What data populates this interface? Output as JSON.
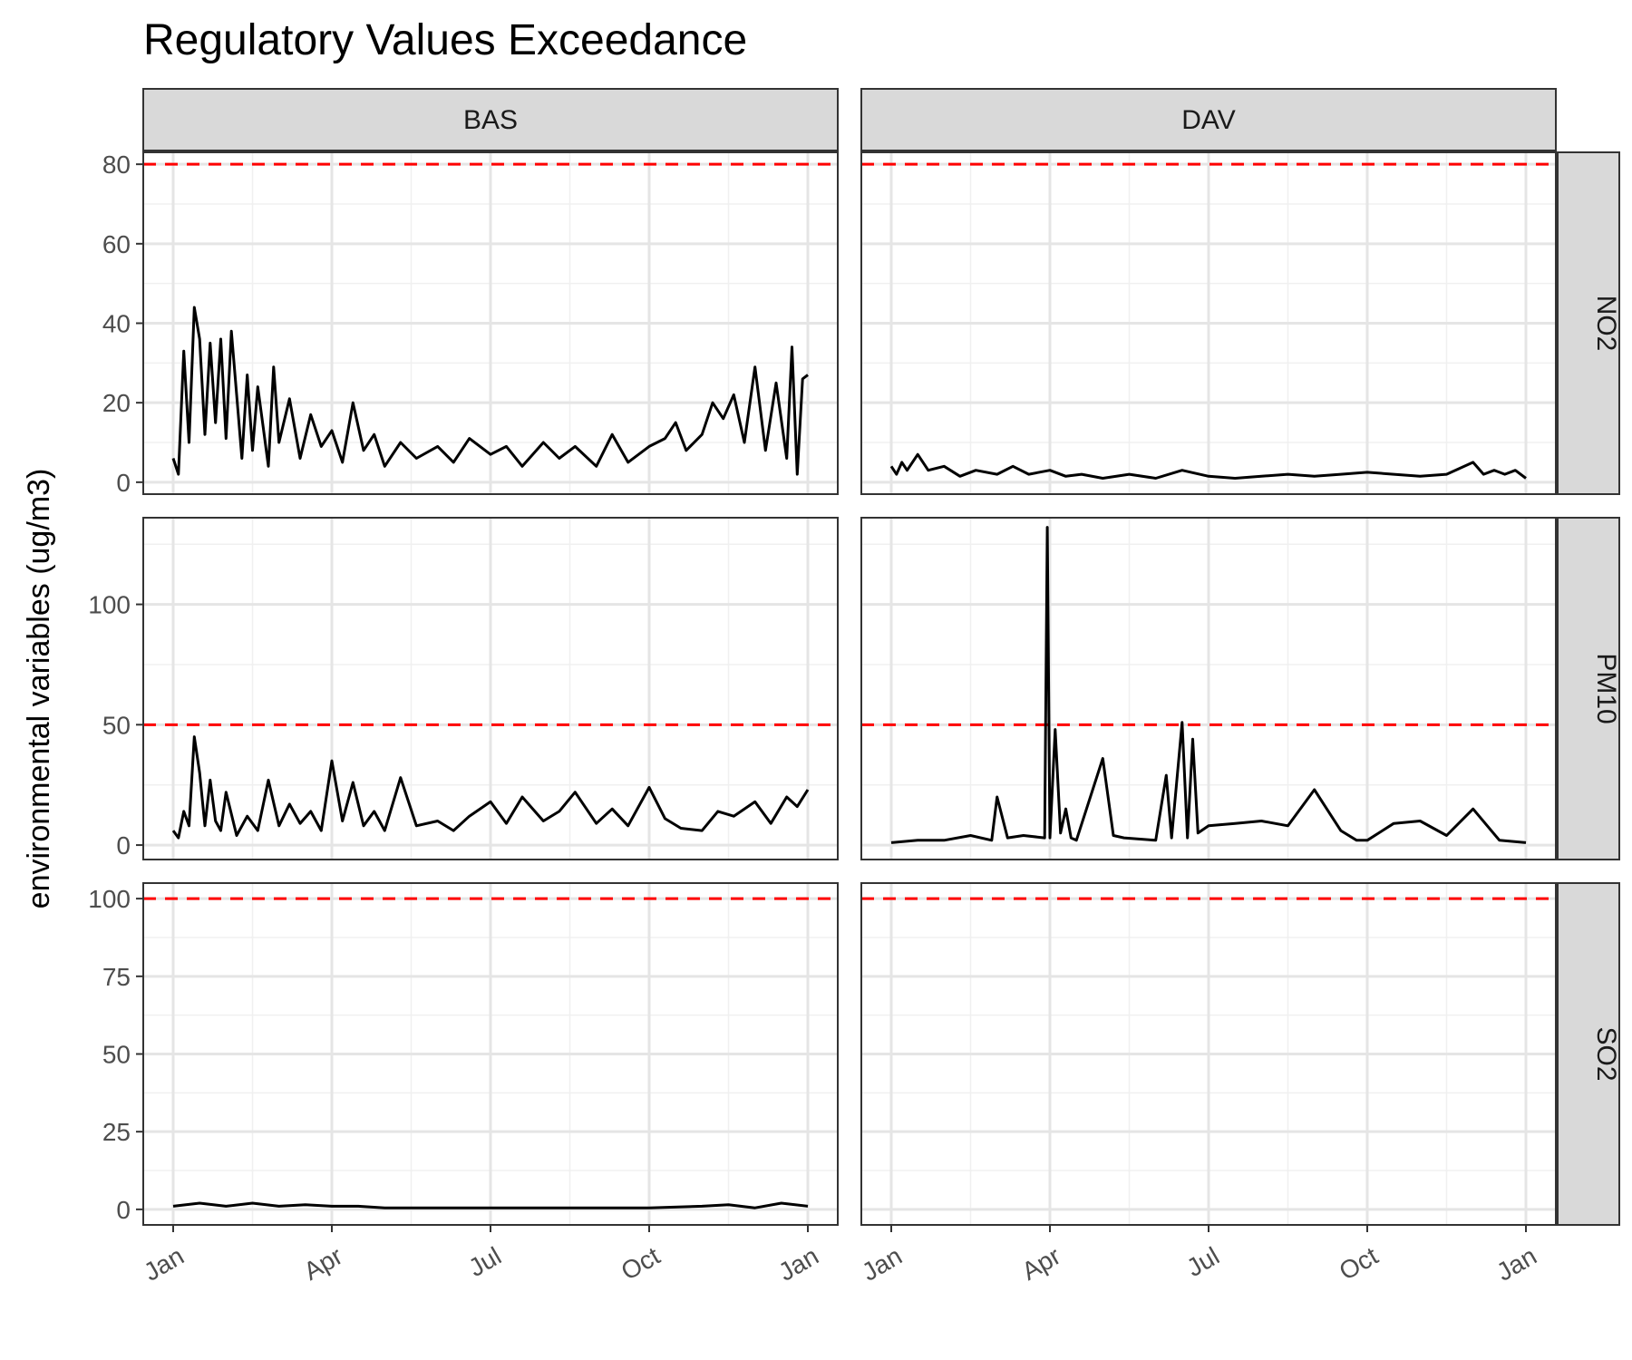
{
  "chart_data": {
    "type": "line",
    "title": "Regulatory Values Exceedance",
    "xlabel": "",
    "ylabel": "environmental variables (ug/m3)",
    "column_facets": [
      "BAS",
      "DAV"
    ],
    "row_facets": [
      "NO2",
      "PM10",
      "SO2"
    ],
    "x_tick_labels": [
      "Jan",
      "Apr",
      "Jul",
      "Oct",
      "Jan"
    ],
    "x_range_months": [
      0,
      12
    ],
    "grid": true,
    "line_color": "#000000",
    "threshold_color": "#ff0000",
    "rows": [
      {
        "variable": "NO2",
        "ylim": [
          -3,
          83
        ],
        "y_ticks": [
          0,
          20,
          40,
          60,
          80
        ],
        "threshold": 80
      },
      {
        "variable": "PM10",
        "ylim": [
          -6,
          136
        ],
        "y_ticks": [
          0,
          50,
          100
        ],
        "threshold": 50
      },
      {
        "variable": "SO2",
        "ylim": [
          -5,
          105
        ],
        "y_ticks": [
          0,
          25,
          50,
          75,
          100
        ],
        "threshold": 100
      }
    ],
    "series": [
      {
        "station": "BAS",
        "variable": "NO2",
        "x_month": [
          0,
          0.1,
          0.2,
          0.3,
          0.4,
          0.5,
          0.6,
          0.7,
          0.8,
          0.9,
          1,
          1.1,
          1.2,
          1.3,
          1.4,
          1.5,
          1.6,
          1.7,
          1.8,
          1.9,
          2,
          2.2,
          2.4,
          2.6,
          2.8,
          3,
          3.2,
          3.4,
          3.6,
          3.8,
          4,
          4.3,
          4.6,
          5,
          5.3,
          5.6,
          6,
          6.3,
          6.6,
          7,
          7.3,
          7.6,
          8,
          8.3,
          8.6,
          9,
          9.3,
          9.5,
          9.7,
          10,
          10.2,
          10.4,
          10.6,
          10.8,
          11,
          11.2,
          11.4,
          11.6,
          11.7,
          11.8,
          11.9,
          12
        ],
        "values": [
          6,
          2,
          33,
          10,
          44,
          36,
          12,
          35,
          15,
          36,
          11,
          38,
          22,
          6,
          27,
          8,
          24,
          14,
          4,
          29,
          10,
          21,
          6,
          17,
          9,
          13,
          5,
          20,
          8,
          12,
          4,
          10,
          6,
          9,
          5,
          11,
          7,
          9,
          4,
          10,
          6,
          9,
          4,
          12,
          5,
          9,
          11,
          15,
          8,
          12,
          20,
          16,
          22,
          10,
          29,
          8,
          25,
          6,
          34,
          2,
          26,
          27
        ]
      },
      {
        "station": "BAS",
        "variable": "PM10",
        "x_month": [
          0,
          0.1,
          0.2,
          0.3,
          0.4,
          0.5,
          0.6,
          0.7,
          0.8,
          0.9,
          1,
          1.2,
          1.4,
          1.6,
          1.8,
          2,
          2.2,
          2.4,
          2.6,
          2.8,
          3,
          3.2,
          3.4,
          3.6,
          3.8,
          4,
          4.3,
          4.6,
          5,
          5.3,
          5.6,
          6,
          6.3,
          6.6,
          7,
          7.3,
          7.6,
          8,
          8.3,
          8.6,
          9,
          9.3,
          9.6,
          10,
          10.3,
          10.6,
          11,
          11.3,
          11.6,
          11.8,
          12
        ],
        "values": [
          6,
          3,
          14,
          8,
          45,
          30,
          8,
          27,
          10,
          6,
          22,
          4,
          12,
          6,
          27,
          8,
          17,
          9,
          14,
          6,
          35,
          10,
          26,
          8,
          14,
          6,
          28,
          8,
          10,
          6,
          12,
          18,
          9,
          20,
          10,
          14,
          22,
          9,
          15,
          8,
          24,
          11,
          7,
          6,
          14,
          12,
          18,
          9,
          20,
          16,
          23
        ]
      },
      {
        "station": "BAS",
        "variable": "SO2",
        "x_month": [
          0,
          0.5,
          1,
          1.5,
          2,
          2.5,
          3,
          3.5,
          4,
          5,
          6,
          7,
          8,
          9,
          10,
          10.5,
          11,
          11.5,
          12
        ],
        "values": [
          1,
          2,
          1,
          2,
          1,
          1.5,
          1,
          1,
          0.5,
          0.5,
          0.5,
          0.5,
          0.5,
          0.5,
          1,
          1.5,
          0.5,
          2,
          1
        ]
      },
      {
        "station": "DAV",
        "variable": "NO2",
        "x_month": [
          0,
          0.1,
          0.2,
          0.3,
          0.5,
          0.7,
          1,
          1.3,
          1.6,
          2,
          2.3,
          2.6,
          3,
          3.3,
          3.6,
          4,
          4.5,
          5,
          5.5,
          6,
          6.5,
          7,
          7.5,
          8,
          8.5,
          9,
          9.5,
          10,
          10.5,
          11,
          11.2,
          11.4,
          11.6,
          11.8,
          12
        ],
        "values": [
          4,
          2,
          5,
          3,
          7,
          3,
          4,
          1.5,
          3,
          2,
          4,
          2,
          3,
          1.5,
          2,
          1,
          2,
          1,
          3,
          1.5,
          1,
          1.5,
          2,
          1.5,
          2,
          2.5,
          2,
          1.5,
          2,
          5,
          2,
          3,
          2,
          3,
          1
        ]
      },
      {
        "station": "DAV",
        "variable": "PM10",
        "x_month": [
          0,
          0.5,
          1,
          1.5,
          1.9,
          2,
          2.2,
          2.5,
          2.9,
          2.95,
          3,
          3.1,
          3.2,
          3.3,
          3.4,
          3.5,
          4,
          4.2,
          4.4,
          5,
          5.2,
          5.3,
          5.5,
          5.6,
          5.7,
          5.8,
          6,
          6.5,
          7,
          7.5,
          8,
          8.5,
          8.8,
          9,
          9.5,
          10,
          10.5,
          11,
          11.5,
          12
        ],
        "values": [
          1,
          2,
          2,
          4,
          2,
          20,
          3,
          4,
          3,
          132,
          3,
          48,
          5,
          15,
          3,
          2,
          36,
          4,
          3,
          2,
          29,
          3,
          51,
          3,
          44,
          5,
          8,
          9,
          10,
          8,
          23,
          6,
          2,
          2,
          9,
          10,
          4,
          15,
          2,
          1
        ]
      },
      {
        "station": "DAV",
        "variable": "SO2",
        "x_month": [],
        "values": []
      }
    ]
  }
}
